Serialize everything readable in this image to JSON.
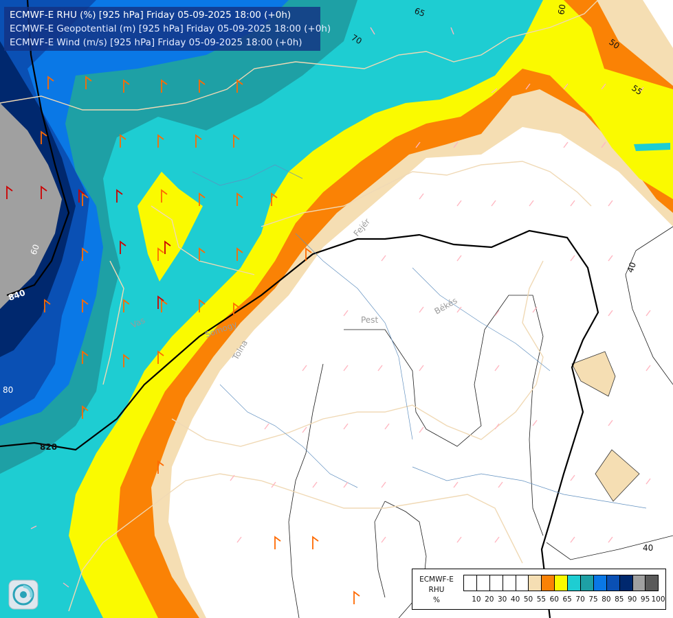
{
  "titles": {
    "line1": "ECMWF-E RHU (%) [925 hPa] Friday 05-09-2025 18:00 (+0h)",
    "line2": "ECMWF-E Geopotential (m) [925 hPa] Friday 05-09-2025 18:00 (+0h)",
    "line3": "ECMWF-E Wind (m/s) [925 hPa] Friday 05-09-2025 18:00 (+0h)"
  },
  "map_labels": {
    "geopotential": [
      "840",
      "820"
    ],
    "rhu_contours": [
      "65",
      "70",
      "60",
      "50",
      "55",
      "40",
      "40",
      "60",
      "80"
    ],
    "places": [
      "Pest",
      "Békés",
      "Vas",
      "Somogy",
      "Tolna",
      "Fejér"
    ]
  },
  "legend": {
    "title": [
      "ECMWF-E",
      "RHU",
      "%"
    ],
    "ticks": [
      "10",
      "20",
      "30",
      "40",
      "50",
      "55",
      "60",
      "65",
      "70",
      "75",
      "80",
      "85",
      "90",
      "95",
      "100"
    ],
    "colors": [
      "#ffffff",
      "#ffffff",
      "#ffffff",
      "#ffffff",
      "#ffffff",
      "#f5deb3",
      "#fa8205",
      "#fafa00",
      "#1ecdd2",
      "#1ea0a5",
      "#0a78e6",
      "#0a50b4",
      "#00286e",
      "#a0a0a0",
      "#5a5a5a"
    ]
  },
  "palette": {
    "rh95": "#a0a0a0",
    "rh90": "#00286e",
    "rh85": "#0a50b4",
    "rh80": "#0a78e6",
    "rh75": "#1ea0a5",
    "rh70": "#1ecdd2",
    "rh65": "#fafa00",
    "rh60": "#fa8205",
    "rh55": "#f5deb3",
    "rh50": "#ffffff"
  },
  "logo": {
    "icon": "ecmwf-swirl-icon"
  }
}
